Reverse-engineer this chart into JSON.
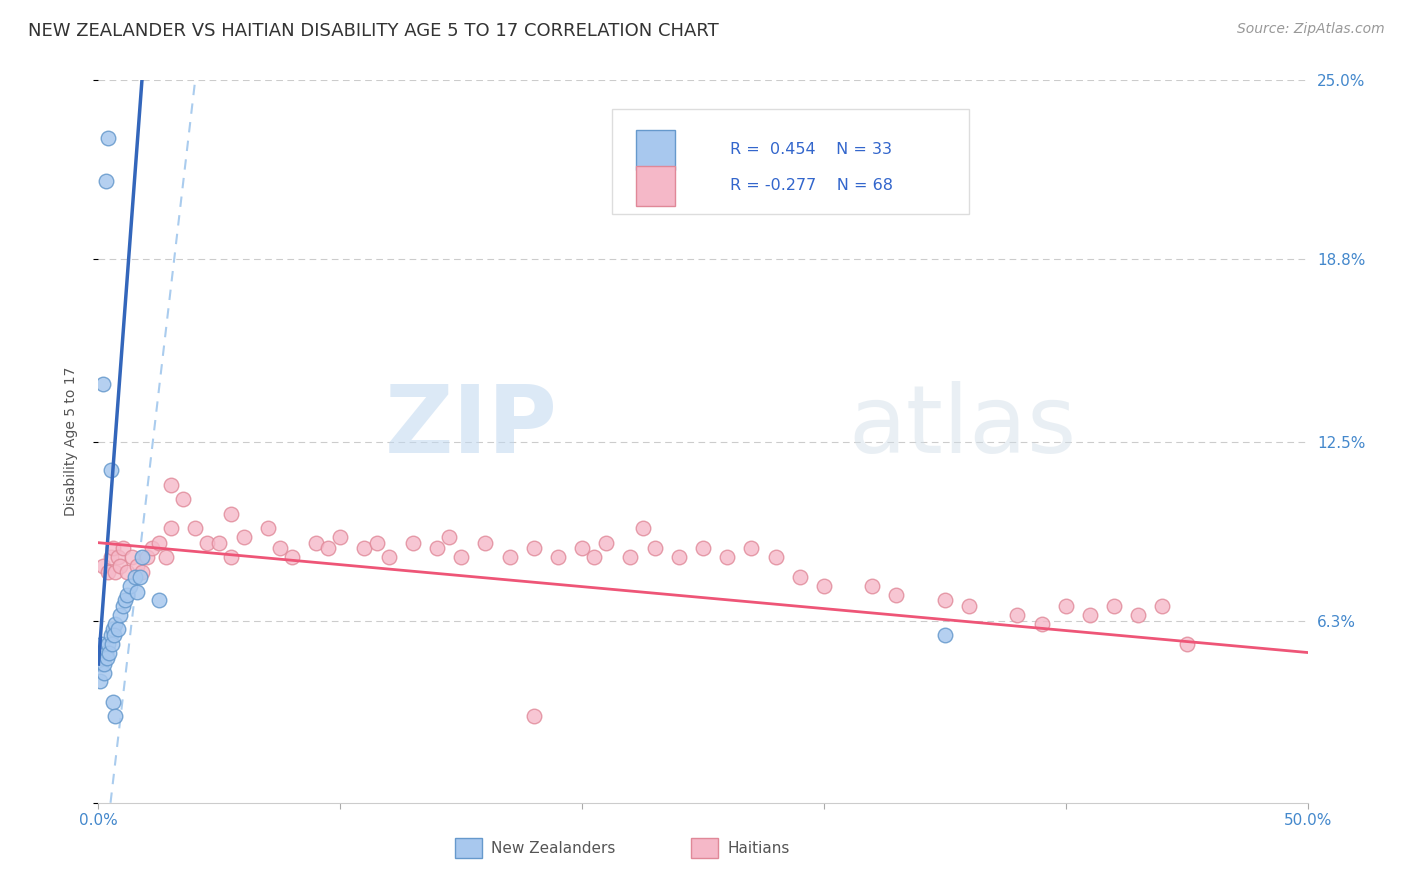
{
  "title": "NEW ZEALANDER VS HAITIAN DISABILITY AGE 5 TO 17 CORRELATION CHART",
  "source": "Source: ZipAtlas.com",
  "ylabel": "Disability Age 5 to 17",
  "xlim": [
    0.0,
    50.0
  ],
  "ylim": [
    0.0,
    25.0
  ],
  "background_color": "#ffffff",
  "plot_bg_color": "#ffffff",
  "grid_color": "#cccccc",
  "nz_color": "#a8c8ee",
  "nz_edge_color": "#6699cc",
  "haitian_color": "#f5b8c8",
  "haitian_edge_color": "#e08898",
  "nz_line_color": "#3366bb",
  "haitian_line_color": "#ee5577",
  "ref_line_color": "#aaccee",
  "legend_label_nz": "New Zealanders",
  "legend_label_haitian": "Haitians",
  "watermark_zip": "ZIP",
  "watermark_atlas": "atlas",
  "title_fontsize": 13,
  "label_fontsize": 10,
  "tick_fontsize": 11,
  "source_fontsize": 10,
  "nz_x": [
    0.15,
    0.12,
    0.08,
    0.18,
    0.22,
    0.3,
    0.25,
    0.4,
    0.35,
    0.5,
    0.45,
    0.6,
    0.55,
    0.7,
    0.65,
    0.8,
    0.9,
    1.0,
    1.1,
    1.2,
    1.3,
    1.5,
    1.8,
    0.2,
    0.3,
    0.4,
    0.5,
    0.6,
    0.7,
    2.5,
    1.6,
    1.7,
    35.0
  ],
  "nz_y": [
    5.5,
    4.8,
    4.2,
    5.0,
    4.5,
    5.2,
    4.8,
    5.5,
    5.0,
    5.8,
    5.2,
    6.0,
    5.5,
    6.2,
    5.8,
    6.0,
    6.5,
    6.8,
    7.0,
    7.2,
    7.5,
    7.8,
    8.5,
    14.5,
    21.5,
    23.0,
    11.5,
    3.5,
    3.0,
    7.0,
    7.3,
    7.8,
    5.8
  ],
  "haitian_x": [
    0.2,
    0.4,
    0.5,
    0.6,
    0.7,
    0.8,
    0.9,
    1.0,
    1.2,
    1.4,
    1.6,
    1.8,
    2.0,
    2.2,
    2.5,
    2.8,
    3.0,
    3.5,
    4.0,
    4.5,
    5.0,
    5.5,
    6.0,
    7.0,
    7.5,
    8.0,
    9.0,
    9.5,
    10.0,
    11.0,
    11.5,
    12.0,
    13.0,
    14.0,
    14.5,
    15.0,
    16.0,
    17.0,
    18.0,
    19.0,
    20.0,
    20.5,
    21.0,
    22.0,
    23.0,
    24.0,
    25.0,
    26.0,
    27.0,
    28.0,
    29.0,
    30.0,
    32.0,
    33.0,
    35.0,
    36.0,
    38.0,
    39.0,
    40.0,
    41.0,
    42.0,
    43.0,
    44.0,
    45.0,
    3.0,
    5.5,
    18.0,
    22.5
  ],
  "haitian_y": [
    8.2,
    8.0,
    8.5,
    8.8,
    8.0,
    8.5,
    8.2,
    8.8,
    8.0,
    8.5,
    8.2,
    8.0,
    8.5,
    8.8,
    9.0,
    8.5,
    9.5,
    10.5,
    9.5,
    9.0,
    9.0,
    8.5,
    9.2,
    9.5,
    8.8,
    8.5,
    9.0,
    8.8,
    9.2,
    8.8,
    9.0,
    8.5,
    9.0,
    8.8,
    9.2,
    8.5,
    9.0,
    8.5,
    8.8,
    8.5,
    8.8,
    8.5,
    9.0,
    8.5,
    8.8,
    8.5,
    8.8,
    8.5,
    8.8,
    8.5,
    7.8,
    7.5,
    7.5,
    7.2,
    7.0,
    6.8,
    6.5,
    6.2,
    6.8,
    6.5,
    6.8,
    6.5,
    6.8,
    5.5,
    11.0,
    10.0,
    3.0,
    9.5
  ]
}
